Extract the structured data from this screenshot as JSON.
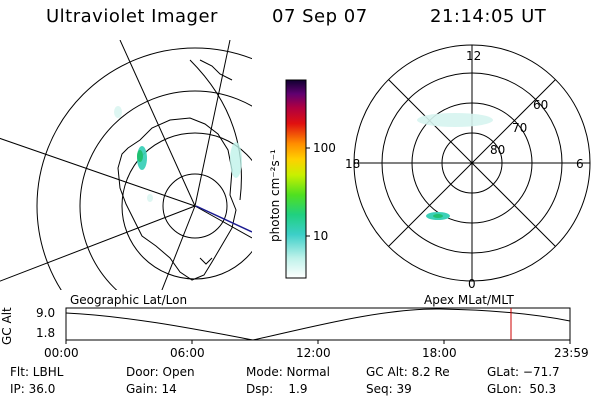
{
  "header": {
    "instrument": "Ultraviolet Imager",
    "date": "07 Sep 07",
    "time": "21:14:05 UT"
  },
  "colorbar": {
    "unit_label": "photon cm⁻²s⁻¹",
    "ticks": [
      "100",
      "10"
    ]
  },
  "polar_plot": {
    "mlt_labels": [
      "12",
      "18",
      "6",
      "0"
    ],
    "lat_labels": [
      "60",
      "70",
      "80"
    ]
  },
  "frame_labels": {
    "left": "Geographic Lat/Lon",
    "right": "Apex MLat/MLT"
  },
  "altitude_strip": {
    "axis_label": "GC Alt",
    "y_ticks": [
      "9.0",
      "1.8"
    ],
    "x_ticks": [
      "00:00",
      "06:00",
      "12:00",
      "18:00",
      "23:59"
    ],
    "marker_color": "#cc0000"
  },
  "info": {
    "row1": {
      "filter": "Flt: LBHL",
      "door": "Door: Open",
      "mode": "Mode: Normal",
      "gc_alt": "GC Alt: 8.2 Re",
      "glat": "GLat: −71.7"
    },
    "row2": {
      "ip": "IP: 36.0",
      "gain": "Gain: 14",
      "dsp": "Dsp:    1.9",
      "seq": "Seq: 39",
      "glon": "GLon:  50.3"
    }
  }
}
